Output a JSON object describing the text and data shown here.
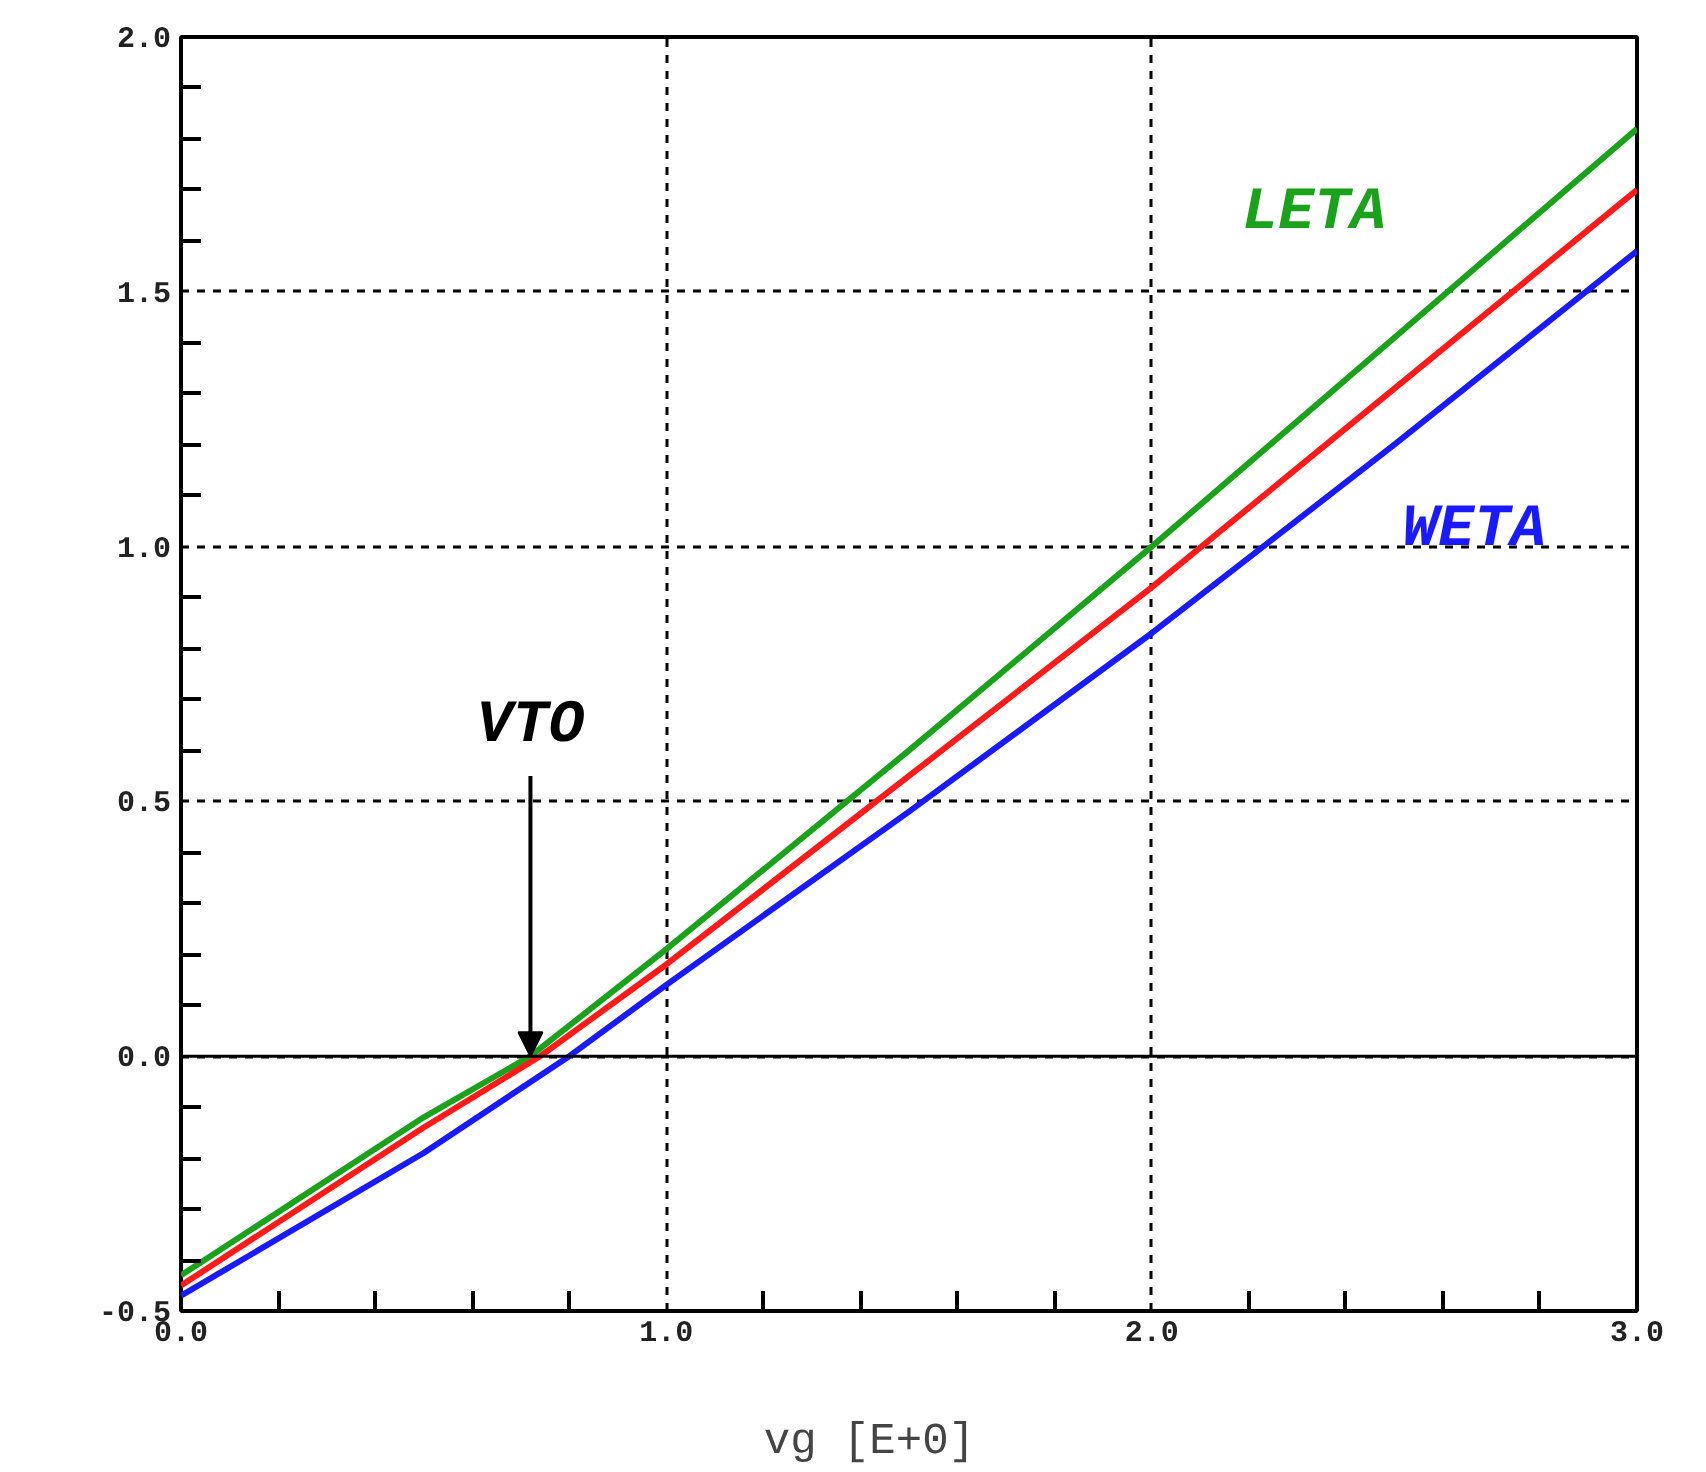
{
  "chart_data": {
    "type": "line",
    "xlabel": "vg    [E+0]",
    "xlim": [
      0,
      3
    ],
    "xticks": [
      {
        "value": 0,
        "label": "0.0"
      },
      {
        "value": 1,
        "label": "1.0"
      },
      {
        "value": 2,
        "label": "2.0"
      },
      {
        "value": 3,
        "label": "3.0"
      }
    ],
    "ylim": [
      -0.5,
      2
    ],
    "yticks": [
      {
        "value": -0.5,
        "label": "-0.5"
      },
      {
        "value": 0,
        "label": "0.0"
      },
      {
        "value": 0.5,
        "label": "0.5"
      },
      {
        "value": 1,
        "label": "1.0"
      },
      {
        "value": 1.5,
        "label": "1.5"
      },
      {
        "value": 2,
        "label": "2.0"
      }
    ],
    "grid": true,
    "marker": "none",
    "line_style": "solid",
    "ref_lines": [
      {
        "axis": "y",
        "value": 0,
        "label": null,
        "color": "#000000",
        "line_style": "solid"
      }
    ],
    "annotations": [
      {
        "text": "VTO",
        "x": 0.72,
        "y": 0
      }
    ],
    "series": [
      {
        "name": "LETA",
        "color": "#1aa31a",
        "x": [
          0,
          0.5,
          0.72,
          1,
          1.5,
          2,
          2.5,
          3
        ],
        "values": [
          -0.43,
          -0.12,
          0.0,
          0.21,
          0.6,
          1.0,
          1.41,
          1.82
        ]
      },
      {
        "color": "#ff1a1a",
        "x": [
          0,
          0.5,
          0.74,
          1,
          1.5,
          2,
          2.5,
          3
        ],
        "values": [
          -0.45,
          -0.14,
          0.0,
          0.18,
          0.55,
          0.92,
          1.31,
          1.7
        ]
      },
      {
        "name": "WETA",
        "color": "#1a1aff",
        "x": [
          0,
          0.5,
          0.8,
          1,
          1.5,
          2,
          2.5,
          3
        ],
        "values": [
          -0.47,
          -0.19,
          0.0,
          0.14,
          0.48,
          0.83,
          1.2,
          1.58
        ]
      }
    ]
  }
}
